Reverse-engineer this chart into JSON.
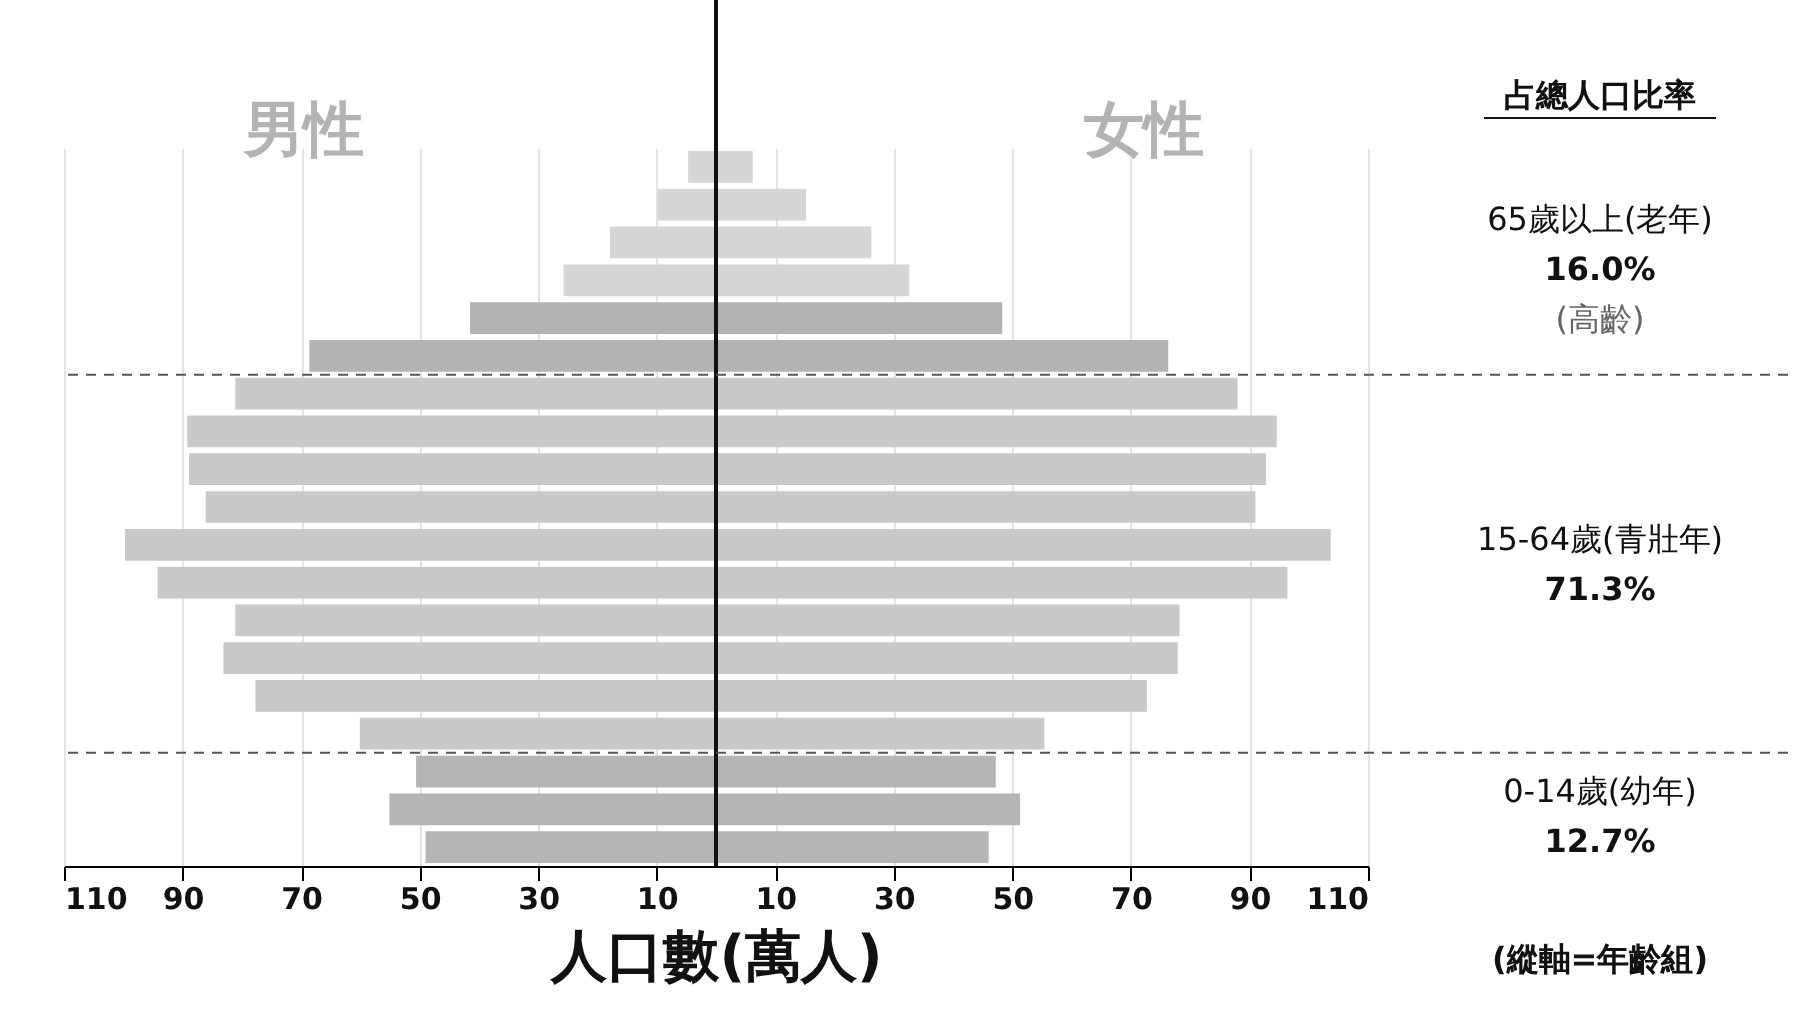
{
  "chart_data": {
    "type": "bar",
    "orientation": "horizontal",
    "xlabel": "人口數(萬人)",
    "categories": [
      null,
      null,
      null,
      null,
      null,
      null,
      null,
      null,
      null,
      null,
      null,
      null,
      null,
      null,
      null,
      null,
      null,
      null,
      null
    ],
    "series": [
      {
        "name": "男性",
        "values": [
          -4.7,
          -9.8,
          -17.9,
          -25.7,
          -41.5,
          -68.6,
          -81.1,
          -89.2,
          -88.9,
          -86.1,
          -99.7,
          -94.2,
          -81.1,
          -83.1,
          -77.7,
          -60.1,
          -50.6,
          -55.1,
          -49.0
        ],
        "colors": [
          "#d6d6d6",
          "#d6d6d6",
          "#d6d6d6",
          "#d6d6d6",
          "#b3b3b3",
          "#b3b3b3",
          "#c9c9c9",
          "#c9c9c9",
          "#c9c9c9",
          "#c9c9c9",
          "#c9c9c9",
          "#c9c9c9",
          "#c9c9c9",
          "#c9c9c9",
          "#c9c9c9",
          "#c9c9c9",
          "#b5b5b5",
          "#b5b5b5",
          "#b5b5b5"
        ]
      },
      {
        "name": "女性",
        "values": [
          6.2,
          15.2,
          26.2,
          32.6,
          48.3,
          76.3,
          88.0,
          94.6,
          92.8,
          91.0,
          103.7,
          96.4,
          78.2,
          77.9,
          72.7,
          55.4,
          47.2,
          51.3,
          46.0
        ],
        "colors": [
          "#d6d6d6",
          "#d6d6d6",
          "#d6d6d6",
          "#d6d6d6",
          "#b3b3b3",
          "#b3b3b3",
          "#c9c9c9",
          "#c9c9c9",
          "#c9c9c9",
          "#c9c9c9",
          "#c9c9c9",
          "#c9c9c9",
          "#c9c9c9",
          "#c9c9c9",
          "#c9c9c9",
          "#c9c9c9",
          "#b5b5b5",
          "#b5b5b5",
          "#b5b5b5"
        ]
      }
    ],
    "xlim": [
      -110,
      110
    ],
    "xticks": [
      {
        "value": -110,
        "label": "110"
      },
      {
        "value": -90,
        "label": "90"
      },
      {
        "value": -70,
        "label": "70"
      },
      {
        "value": -50,
        "label": "50"
      },
      {
        "value": -30,
        "label": "30"
      },
      {
        "value": -10,
        "label": "10"
      },
      10,
      30,
      50,
      70,
      90,
      110
    ],
    "grid": "x",
    "stacked": true,
    "ref_lines": [
      {
        "axis": "x",
        "value": 0,
        "color": "#111111",
        "line_style": "solid"
      }
    ],
    "annotations": [
      "占總人口比率",
      "65歲以上(老年)\n16.0%\n(高齡)",
      "15-64歲(青壯年)\n71.3%",
      "0-14歲(幼年)\n12.7%",
      "(縱軸=年齡組)"
    ]
  }
}
